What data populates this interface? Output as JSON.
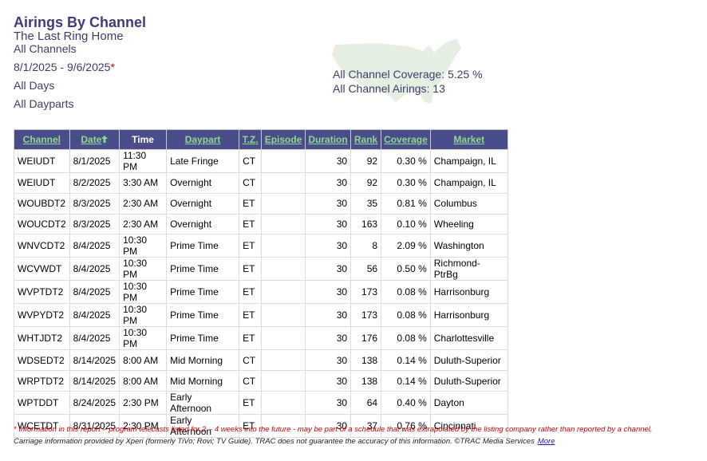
{
  "header": {
    "title": "Airings By Channel",
    "program": "The Last Ring Home",
    "channels": "All Channels",
    "date_range": "8/1/2025 - 9/6/2025",
    "date_note_mark": "*",
    "days": "All Days",
    "dayparts": "All Dayparts"
  },
  "summary": {
    "coverage": "All Channel Coverage: 5.25 %",
    "airings": "All Channel Airings: 13"
  },
  "table": {
    "columns": [
      "Channel",
      "Date",
      "Time",
      "Daypart",
      "T.Z.",
      "Episode",
      "Duration",
      "Rank",
      "Coverage",
      "Market"
    ],
    "rows": [
      {
        "channel": "WEIUDT",
        "date": "8/1/2025",
        "time": "11:30 PM",
        "daypart": "Late Fringe",
        "tz": "CT",
        "duration": 30,
        "rank": 92,
        "coverage": "0.30 %",
        "market": "Champaign, IL"
      },
      {
        "channel": "WEIUDT",
        "date": "8/2/2025",
        "time": "3:30 AM",
        "daypart": "Overnight",
        "tz": "CT",
        "duration": 30,
        "rank": 92,
        "coverage": "0.30 %",
        "market": "Champaign, IL"
      },
      {
        "channel": "WOUBDT2",
        "date": "8/3/2025",
        "time": "2:30 AM",
        "daypart": "Overnight",
        "tz": "ET",
        "duration": 30,
        "rank": 35,
        "coverage": "0.81 %",
        "market": "Columbus"
      },
      {
        "channel": "WOUCDT2",
        "date": "8/3/2025",
        "time": "2:30 AM",
        "daypart": "Overnight",
        "tz": "ET",
        "duration": 30,
        "rank": 163,
        "coverage": "0.10 %",
        "market": "Wheeling"
      },
      {
        "channel": "WNVCDT2",
        "date": "8/4/2025",
        "time": "10:30 PM",
        "daypart": "Prime Time",
        "tz": "ET",
        "duration": 30,
        "rank": 8,
        "coverage": "2.09 %",
        "market": "Washington"
      },
      {
        "channel": "WCVWDT",
        "date": "8/4/2025",
        "time": "10:30 PM",
        "daypart": "Prime Time",
        "tz": "ET",
        "duration": 30,
        "rank": 56,
        "coverage": "0.50 %",
        "market": "Richmond-PtrBg"
      },
      {
        "channel": "WVPTDT2",
        "date": "8/4/2025",
        "time": "10:30 PM",
        "daypart": "Prime Time",
        "tz": "ET",
        "duration": 30,
        "rank": 173,
        "coverage": "0.08 %",
        "market": "Harrisonburg"
      },
      {
        "channel": "WVPYDT2",
        "date": "8/4/2025",
        "time": "10:30 PM",
        "daypart": "Prime Time",
        "tz": "ET",
        "duration": 30,
        "rank": 173,
        "coverage": "0.08 %",
        "market": "Harrisonburg"
      },
      {
        "channel": "WHTJDT2",
        "date": "8/4/2025",
        "time": "10:30 PM",
        "daypart": "Prime Time",
        "tz": "ET",
        "duration": 30,
        "rank": 176,
        "coverage": "0.08 %",
        "market": "Charlottesville"
      },
      {
        "channel": "WDSEDT2",
        "date": "8/14/2025",
        "time": "8:00 AM",
        "daypart": "Mid Morning",
        "tz": "CT",
        "duration": 30,
        "rank": 138,
        "coverage": "0.14 %",
        "market": "Duluth-Superior"
      },
      {
        "channel": "WRPTDT2",
        "date": "8/14/2025",
        "time": "8:00 AM",
        "daypart": "Mid Morning",
        "tz": "CT",
        "duration": 30,
        "rank": 138,
        "coverage": "0.14 %",
        "market": "Duluth-Superior"
      },
      {
        "channel": "WPTDDT",
        "date": "8/24/2025",
        "time": "2:30 PM",
        "daypart": "Early Afternoon",
        "tz": "ET",
        "duration": 30,
        "rank": 64,
        "coverage": "0.40 %",
        "market": "Dayton"
      },
      {
        "channel": "WCETDT",
        "date": "8/31/2025",
        "time": "2:30 PM",
        "daypart": "Early Afternoon",
        "tz": "ET",
        "duration": 30,
        "rank": 37,
        "coverage": "0.76 %",
        "market": "Cincinnati"
      }
    ]
  },
  "footer": {
    "note": "* Information in this report – program telecasts listed for 2 – 4 weeks into the future - may be part of a schedule that was extrapolated by the listing company rather than reported by a channel.",
    "carriage": "Carriage information provided by Xperi (formerly TiVo; Rovi; TV Guide). TRAC does not guarantee the accuracy of this information. ©TRAC Media Services",
    "more": "More"
  }
}
